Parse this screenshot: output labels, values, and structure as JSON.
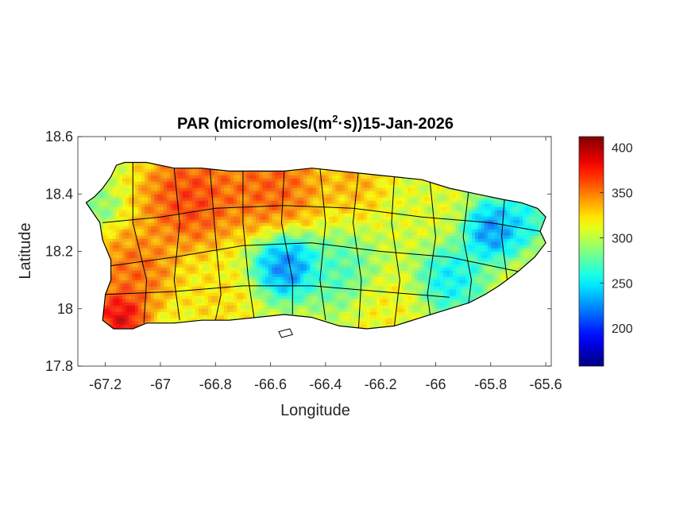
{
  "title": {
    "prefix": "PAR (micromoles/(m",
    "superscript": "2",
    "suffix": "·s))15-Jan-2026"
  },
  "axes": {
    "xlabel": "Longitude",
    "ylabel": "Latitude",
    "xlim": [
      -67.3,
      -65.58
    ],
    "ylim": [
      17.8,
      18.6
    ],
    "xticks": [
      {
        "value": -67.2,
        "label": "-67.2"
      },
      {
        "value": -67.0,
        "label": "-67"
      },
      {
        "value": -66.8,
        "label": "-66.8"
      },
      {
        "value": -66.6,
        "label": "-66.6"
      },
      {
        "value": -66.4,
        "label": "-66.4"
      },
      {
        "value": -66.2,
        "label": "-66.2"
      },
      {
        "value": -66.0,
        "label": "-66"
      },
      {
        "value": -65.8,
        "label": "-65.8"
      },
      {
        "value": -65.6,
        "label": "-65.6"
      }
    ],
    "yticks": [
      {
        "value": 17.8,
        "label": "17.8"
      },
      {
        "value": 18.0,
        "label": "18"
      },
      {
        "value": 18.2,
        "label": "18.2"
      },
      {
        "value": 18.4,
        "label": "18.4"
      },
      {
        "value": 18.6,
        "label": "18.6"
      }
    ]
  },
  "colorbar": {
    "range": [
      158,
      412
    ],
    "colormap": "jet",
    "ticks": [
      {
        "value": 200,
        "label": "200"
      },
      {
        "value": 250,
        "label": "250"
      },
      {
        "value": 300,
        "label": "300"
      },
      {
        "value": 350,
        "label": "350"
      },
      {
        "value": 400,
        "label": "400"
      }
    ]
  },
  "map_data": {
    "region": "Puerto Rico",
    "outline": [
      [
        -67.27,
        18.37
      ],
      [
        -67.24,
        18.39
      ],
      [
        -67.21,
        18.42
      ],
      [
        -67.18,
        18.46
      ],
      [
        -67.16,
        18.5
      ],
      [
        -67.13,
        18.51
      ],
      [
        -67.05,
        18.51
      ],
      [
        -66.95,
        18.49
      ],
      [
        -66.85,
        18.49
      ],
      [
        -66.75,
        18.48
      ],
      [
        -66.65,
        18.48
      ],
      [
        -66.55,
        18.48
      ],
      [
        -66.45,
        18.49
      ],
      [
        -66.35,
        18.48
      ],
      [
        -66.25,
        18.47
      ],
      [
        -66.15,
        18.46
      ],
      [
        -66.05,
        18.45
      ],
      [
        -65.95,
        18.42
      ],
      [
        -65.85,
        18.4
      ],
      [
        -65.75,
        18.38
      ],
      [
        -65.69,
        18.37
      ],
      [
        -65.63,
        18.35
      ],
      [
        -65.6,
        18.32
      ],
      [
        -65.62,
        18.27
      ],
      [
        -65.6,
        18.23
      ],
      [
        -65.64,
        18.18
      ],
      [
        -65.7,
        18.13
      ],
      [
        -65.77,
        18.08
      ],
      [
        -65.82,
        18.05
      ],
      [
        -65.88,
        18.02
      ],
      [
        -65.95,
        18.0
      ],
      [
        -66.05,
        17.97
      ],
      [
        -66.15,
        17.94
      ],
      [
        -66.25,
        17.93
      ],
      [
        -66.35,
        17.94
      ],
      [
        -66.45,
        17.97
      ],
      [
        -66.55,
        17.98
      ],
      [
        -66.65,
        17.97
      ],
      [
        -66.75,
        17.96
      ],
      [
        -66.85,
        17.96
      ],
      [
        -66.95,
        17.95
      ],
      [
        -67.05,
        17.95
      ],
      [
        -67.1,
        17.93
      ],
      [
        -67.17,
        17.93
      ],
      [
        -67.21,
        17.96
      ],
      [
        -67.2,
        18.05
      ],
      [
        -67.18,
        18.1
      ],
      [
        -67.18,
        18.17
      ],
      [
        -67.21,
        18.24
      ],
      [
        -67.22,
        18.3
      ],
      [
        -67.27,
        18.37
      ]
    ],
    "small_islands": [
      [
        [
          -66.57,
          17.92
        ],
        [
          -66.53,
          17.93
        ],
        [
          -66.52,
          17.91
        ],
        [
          -66.56,
          17.9
        ],
        [
          -66.57,
          17.92
        ]
      ]
    ],
    "value_fields": [
      {
        "lon": -67.15,
        "lat": 17.97,
        "value": 415,
        "sigma": 0.07
      },
      {
        "lon": -67.1,
        "lat": 18.12,
        "value": 370,
        "sigma": 0.12
      },
      {
        "lon": -66.9,
        "lat": 18.38,
        "value": 385,
        "sigma": 0.14
      },
      {
        "lon": -66.6,
        "lat": 18.42,
        "value": 375,
        "sigma": 0.14
      },
      {
        "lon": -66.3,
        "lat": 18.44,
        "value": 345,
        "sigma": 0.1
      },
      {
        "lon": -66.05,
        "lat": 18.4,
        "value": 310,
        "sigma": 0.12
      },
      {
        "lon": -66.55,
        "lat": 18.15,
        "value": 195,
        "sigma": 0.09
      },
      {
        "lon": -66.35,
        "lat": 18.12,
        "value": 260,
        "sigma": 0.1
      },
      {
        "lon": -65.8,
        "lat": 18.27,
        "value": 200,
        "sigma": 0.08
      },
      {
        "lon": -65.95,
        "lat": 18.1,
        "value": 235,
        "sigma": 0.09
      },
      {
        "lon": -65.7,
        "lat": 18.3,
        "value": 240,
        "sigma": 0.07
      },
      {
        "lon": -66.2,
        "lat": 18.0,
        "value": 320,
        "sigma": 0.1
      },
      {
        "lon": -66.8,
        "lat": 18.02,
        "value": 330,
        "sigma": 0.1
      },
      {
        "lon": -67.22,
        "lat": 18.35,
        "value": 280,
        "sigma": 0.05
      }
    ],
    "base_value": 305,
    "municipal_boundaries": [
      [
        [
          -67.1,
          18.51
        ],
        [
          -67.1,
          18.3
        ],
        [
          -67.05,
          18.1
        ],
        [
          -67.06,
          17.95
        ]
      ],
      [
        [
          -66.95,
          18.49
        ],
        [
          -66.93,
          18.3
        ],
        [
          -66.95,
          18.1
        ],
        [
          -66.93,
          17.96
        ]
      ],
      [
        [
          -66.82,
          18.49
        ],
        [
          -66.8,
          18.25
        ],
        [
          -66.78,
          18.05
        ],
        [
          -66.8,
          17.96
        ]
      ],
      [
        [
          -66.7,
          18.48
        ],
        [
          -66.7,
          18.3
        ],
        [
          -66.68,
          18.1
        ],
        [
          -66.66,
          17.97
        ]
      ],
      [
        [
          -66.55,
          18.48
        ],
        [
          -66.56,
          18.3
        ],
        [
          -66.52,
          18.1
        ],
        [
          -66.52,
          17.98
        ]
      ],
      [
        [
          -66.42,
          18.49
        ],
        [
          -66.4,
          18.3
        ],
        [
          -66.42,
          18.1
        ],
        [
          -66.4,
          17.96
        ]
      ],
      [
        [
          -66.28,
          18.48
        ],
        [
          -66.3,
          18.3
        ],
        [
          -66.27,
          18.1
        ],
        [
          -66.28,
          17.93
        ]
      ],
      [
        [
          -66.15,
          18.46
        ],
        [
          -66.16,
          18.3
        ],
        [
          -66.13,
          18.1
        ],
        [
          -66.15,
          17.94
        ]
      ],
      [
        [
          -66.02,
          18.44
        ],
        [
          -66.0,
          18.25
        ],
        [
          -66.03,
          18.05
        ],
        [
          -66.02,
          17.98
        ]
      ],
      [
        [
          -65.88,
          18.41
        ],
        [
          -65.9,
          18.25
        ],
        [
          -65.87,
          18.1
        ],
        [
          -65.88,
          18.02
        ]
      ],
      [
        [
          -65.75,
          18.38
        ],
        [
          -65.76,
          18.25
        ],
        [
          -65.74,
          18.1
        ]
      ],
      [
        [
          -67.21,
          18.3
        ],
        [
          -67.0,
          18.32
        ],
        [
          -66.8,
          18.35
        ],
        [
          -66.55,
          18.36
        ],
        [
          -66.3,
          18.35
        ],
        [
          -66.05,
          18.32
        ],
        [
          -65.8,
          18.3
        ],
        [
          -65.62,
          18.27
        ]
      ],
      [
        [
          -67.18,
          18.15
        ],
        [
          -66.95,
          18.18
        ],
        [
          -66.7,
          18.22
        ],
        [
          -66.45,
          18.23
        ],
        [
          -66.2,
          18.2
        ],
        [
          -65.95,
          18.18
        ],
        [
          -65.7,
          18.13
        ]
      ],
      [
        [
          -67.2,
          18.05
        ],
        [
          -66.95,
          18.06
        ],
        [
          -66.7,
          18.08
        ],
        [
          -66.45,
          18.08
        ],
        [
          -66.2,
          18.06
        ],
        [
          -65.95,
          18.04
        ]
      ]
    ]
  }
}
